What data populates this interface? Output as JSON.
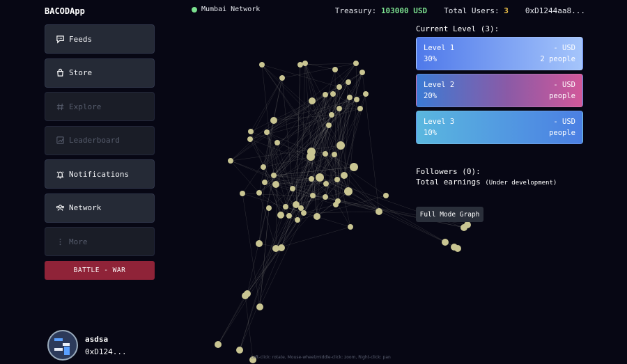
{
  "app": {
    "title": "BACODApp"
  },
  "network": {
    "label": "Mumbai Network"
  },
  "topbar": {
    "treasury_label": "Treasury:",
    "treasury_value": "103000 USD",
    "users_label": "Total Users:",
    "users_value": "3",
    "address": "0xD1244aa8..."
  },
  "sidebar": {
    "items": [
      {
        "label": "Feeds",
        "icon": "chat-bubble-icon",
        "enabled": true
      },
      {
        "label": "Store",
        "icon": "shopping-bag-icon",
        "enabled": true
      },
      {
        "label": "Explore",
        "icon": "hash-icon",
        "enabled": false
      },
      {
        "label": "Leaderboard",
        "icon": "chart-icon",
        "enabled": false
      },
      {
        "label": "Notifications",
        "icon": "bell-icon",
        "enabled": true
      },
      {
        "label": "Network",
        "icon": "people-icon",
        "enabled": true
      },
      {
        "label": "More",
        "icon": "vertical-dots-icon",
        "enabled": false
      }
    ],
    "battle_label": "BATTLE - WAR"
  },
  "user": {
    "name": "asdsa",
    "address": "0xD124..."
  },
  "levels": {
    "title": "Current Level (3):",
    "items": [
      {
        "name": "Level 1",
        "percent": "30%",
        "amount": "- USD",
        "people": "2 people"
      },
      {
        "name": "Level 2",
        "percent": "20%",
        "amount": "- USD",
        "people": "people"
      },
      {
        "name": "Level 3",
        "percent": "10%",
        "amount": "- USD",
        "people": "people"
      }
    ]
  },
  "stats": {
    "followers": "Followers (0):",
    "earnings_label": "Total earnings",
    "earnings_note": "(Under development)"
  },
  "graph_button": "Full Mode Graph",
  "hint": "Left-click: rotate, Mouse-wheel/middle-click: zoom, Right-click: pan",
  "colors": {
    "accent_green": "#7be08f",
    "accent_yellow": "#f3c54a",
    "battle": "#8f2338",
    "node": "#c9c592"
  }
}
